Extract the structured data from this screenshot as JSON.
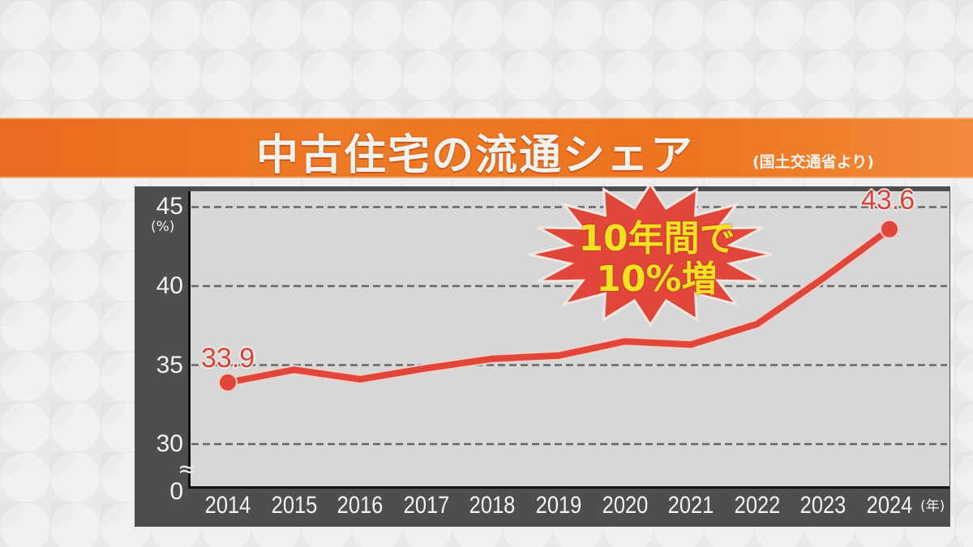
{
  "header": {
    "title": "中古住宅の流通シェア",
    "source": "(国土交通省より)"
  },
  "axis": {
    "y_ticks": [
      "45",
      "40",
      "35",
      "30",
      "0"
    ],
    "y_unit": "(%)",
    "x_unit": "(年)",
    "break_mark": "≈"
  },
  "labels": {
    "first_value": "33.9",
    "last_value": "43.6"
  },
  "callout": {
    "line1": "10年間で",
    "line2": "10%増"
  },
  "colors": {
    "banner": "#ed7420",
    "line": "#e0463a",
    "callout_fill": "#e0463a",
    "callout_text": "#f5e022",
    "plot_bg": "#d7d7d7",
    "axis_panel": "#4e4e4e"
  },
  "chart_data": {
    "type": "line",
    "title": "中古住宅の流通シェア",
    "subtitle": "(国土交通省より)",
    "xlabel": "(年)",
    "ylabel": "(%)",
    "categories": [
      "2014",
      "2015",
      "2016",
      "2017",
      "2018",
      "2019",
      "2020",
      "2021",
      "2022",
      "2023",
      "2024"
    ],
    "series": [
      {
        "name": "中古住宅の流通シェア",
        "values": [
          33.9,
          34.7,
          34.1,
          34.8,
          35.4,
          35.6,
          36.5,
          36.3,
          37.6,
          40.5,
          43.6
        ]
      }
    ],
    "data_labels": {
      "2014": "33.9",
      "2024": "43.6"
    },
    "annotation": "10年間で10%増",
    "y_ticks": [
      0,
      30,
      35,
      40,
      45
    ],
    "axis_break": "between 0 and 30",
    "ylim": [
      28.5,
      46
    ],
    "grid": "horizontal dashed at 30, 35, 40, 45",
    "legend": "none"
  }
}
